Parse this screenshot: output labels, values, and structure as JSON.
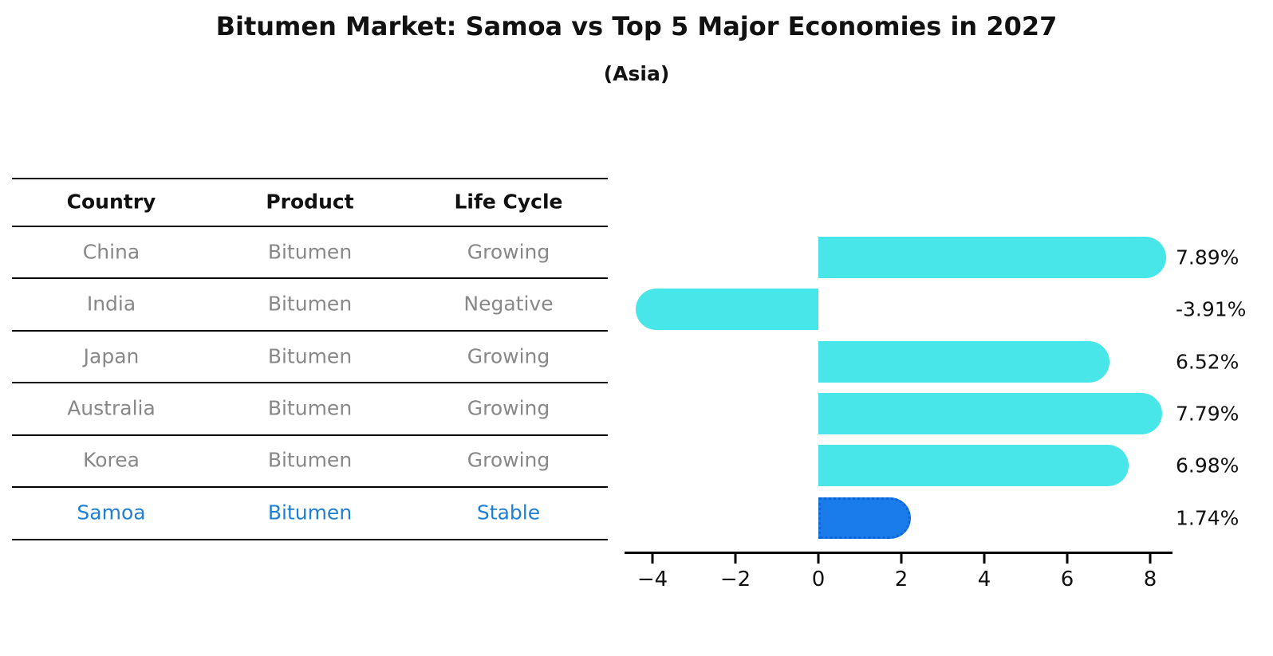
{
  "title": "Bitumen Market: Samoa vs Top 5 Major Economies in 2027",
  "subtitle": "(Asia)",
  "table": {
    "headers": [
      "Country",
      "Product",
      "Life Cycle"
    ],
    "rows": [
      {
        "country": "China",
        "product": "Bitumen",
        "life_cycle": "Growing",
        "highlight": false
      },
      {
        "country": "India",
        "product": "Bitumen",
        "life_cycle": "Negative",
        "highlight": false
      },
      {
        "country": "Japan",
        "product": "Bitumen",
        "life_cycle": "Growing",
        "highlight": false
      },
      {
        "country": "Australia",
        "product": "Bitumen",
        "life_cycle": "Growing",
        "highlight": false
      },
      {
        "country": "Korea",
        "product": "Bitumen",
        "life_cycle": "Growing",
        "highlight": false
      },
      {
        "country": "Samoa",
        "product": "Bitumen",
        "life_cycle": "Stable",
        "highlight": true
      }
    ]
  },
  "chart_data": {
    "type": "bar",
    "orientation": "horizontal",
    "title": "Bitumen Market: Samoa vs Top 5 Major Economies in 2027",
    "subtitle": "(Asia)",
    "categories": [
      "China",
      "India",
      "Japan",
      "Australia",
      "Korea",
      "Samoa"
    ],
    "values": [
      7.89,
      -3.91,
      6.52,
      7.79,
      6.98,
      1.74
    ],
    "value_labels": [
      "7.89%",
      "-3.91%",
      "6.52%",
      "7.79%",
      "6.98%",
      "1.74%"
    ],
    "x_ticks": [
      -4,
      -2,
      0,
      2,
      4,
      6,
      8
    ],
    "x_tick_labels": [
      "−4",
      "−2",
      "0",
      "2",
      "4",
      "6",
      "8"
    ],
    "xlim": [
      -4.7,
      8.6
    ],
    "grid": false,
    "legend": false,
    "highlight_index": 5
  },
  "colors": {
    "bar": "#48E5E9",
    "highlight_bar": "#1A7CEA",
    "highlight_bar_border": "#0F65D8",
    "row_text": "#888888",
    "header_text": "#111111",
    "highlight_text": "#1F7FD4",
    "axis": "#000000",
    "value_label": "#111111"
  }
}
